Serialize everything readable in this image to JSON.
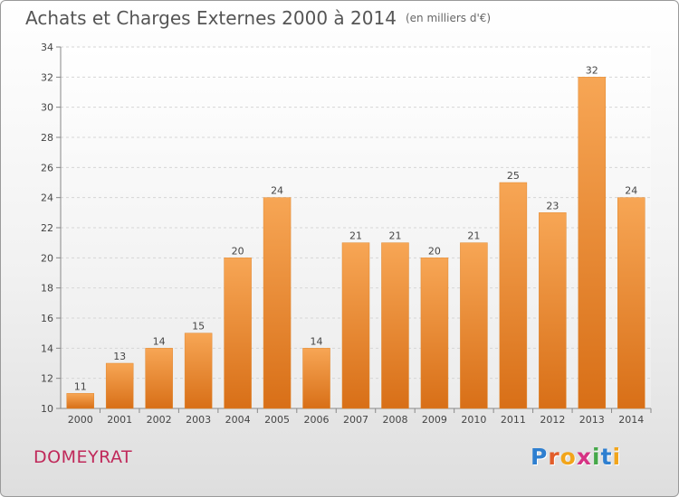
{
  "chart_data": {
    "type": "bar",
    "title": "Achats et Charges Externes 2000 à 2014",
    "subtitle": "(en milliers d'€)",
    "categories": [
      "2000",
      "2001",
      "2002",
      "2003",
      "2004",
      "2005",
      "2006",
      "2007",
      "2008",
      "2009",
      "2010",
      "2011",
      "2012",
      "2013",
      "2014"
    ],
    "values": [
      11,
      13,
      14,
      15,
      20,
      24,
      14,
      21,
      21,
      20,
      21,
      25,
      23,
      32,
      24
    ],
    "ylim": [
      10,
      34
    ],
    "yticks": [
      10,
      12,
      14,
      16,
      18,
      20,
      22,
      24,
      26,
      28,
      30,
      32,
      34
    ],
    "grid": true,
    "bar_color": "#f0953f"
  },
  "commune": "DOMEYRAT",
  "logo": {
    "letters": [
      "P",
      "r",
      "o",
      "x",
      "i",
      "t",
      "i"
    ],
    "colors": [
      "#2e7fd0",
      "#e25d2a",
      "#f2a51a",
      "#d63384",
      "#46a84a",
      "#2e7fd0",
      "#f2a51a"
    ]
  }
}
